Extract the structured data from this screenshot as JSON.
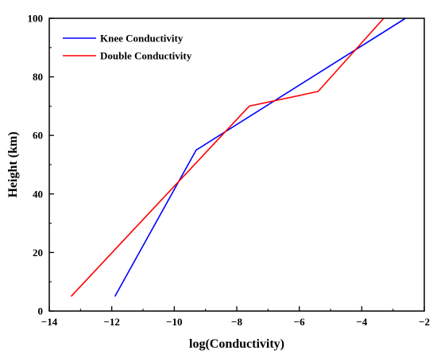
{
  "chart_data": {
    "type": "line",
    "title": "",
    "xlabel": "log(Conductivity)",
    "ylabel": "Height (km)",
    "xlim": [
      -14,
      -2
    ],
    "ylim": [
      0,
      100
    ],
    "xticks": [
      "−14",
      "−12",
      "−10",
      "−8",
      "−6",
      "−4",
      "−2"
    ],
    "yticks": [
      "0",
      "20",
      "40",
      "60",
      "80",
      "100"
    ],
    "legend_position": "top-left",
    "grid": false,
    "series": [
      {
        "name": "Knee Conductivity",
        "color": "#0000ff",
        "x": [
          -11.9,
          -9.3,
          -2.6
        ],
        "y": [
          5,
          55,
          100
        ]
      },
      {
        "name": "Double Conductivity",
        "color": "#ff0000",
        "x": [
          -13.3,
          -7.6,
          -5.4,
          -3.3
        ],
        "y": [
          5,
          70,
          75,
          100
        ]
      }
    ]
  }
}
